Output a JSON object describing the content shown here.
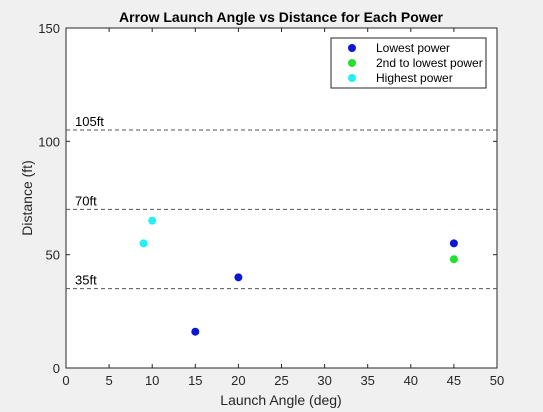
{
  "chart_data": {
    "type": "scatter",
    "title": "Arrow Launch Angle vs Distance for Each Power",
    "xlabel": "Launch Angle (deg)",
    "ylabel": "Distance (ft)",
    "xlim": [
      0,
      50
    ],
    "ylim": [
      0,
      150
    ],
    "xticks": [
      0,
      5,
      10,
      15,
      20,
      25,
      30,
      35,
      40,
      45,
      50
    ],
    "yticks": [
      0,
      50,
      100,
      150
    ],
    "grid": false,
    "legend_position": "top-right",
    "series": [
      {
        "name": "Lowest power",
        "color": "#0b17d6",
        "points": [
          [
            15,
            16
          ],
          [
            20,
            40
          ],
          [
            45,
            55
          ]
        ]
      },
      {
        "name": "2nd to lowest power",
        "color": "#22e22b",
        "points": [
          [
            45,
            48
          ]
        ]
      },
      {
        "name": "Highest power",
        "color": "#22f0f2",
        "points": [
          [
            9,
            55
          ],
          [
            10,
            65
          ]
        ]
      }
    ],
    "reference_lines": [
      {
        "y": 105,
        "label": "105ft"
      },
      {
        "y": 70,
        "label": "70ft"
      },
      {
        "y": 35,
        "label": "35ft"
      }
    ]
  }
}
